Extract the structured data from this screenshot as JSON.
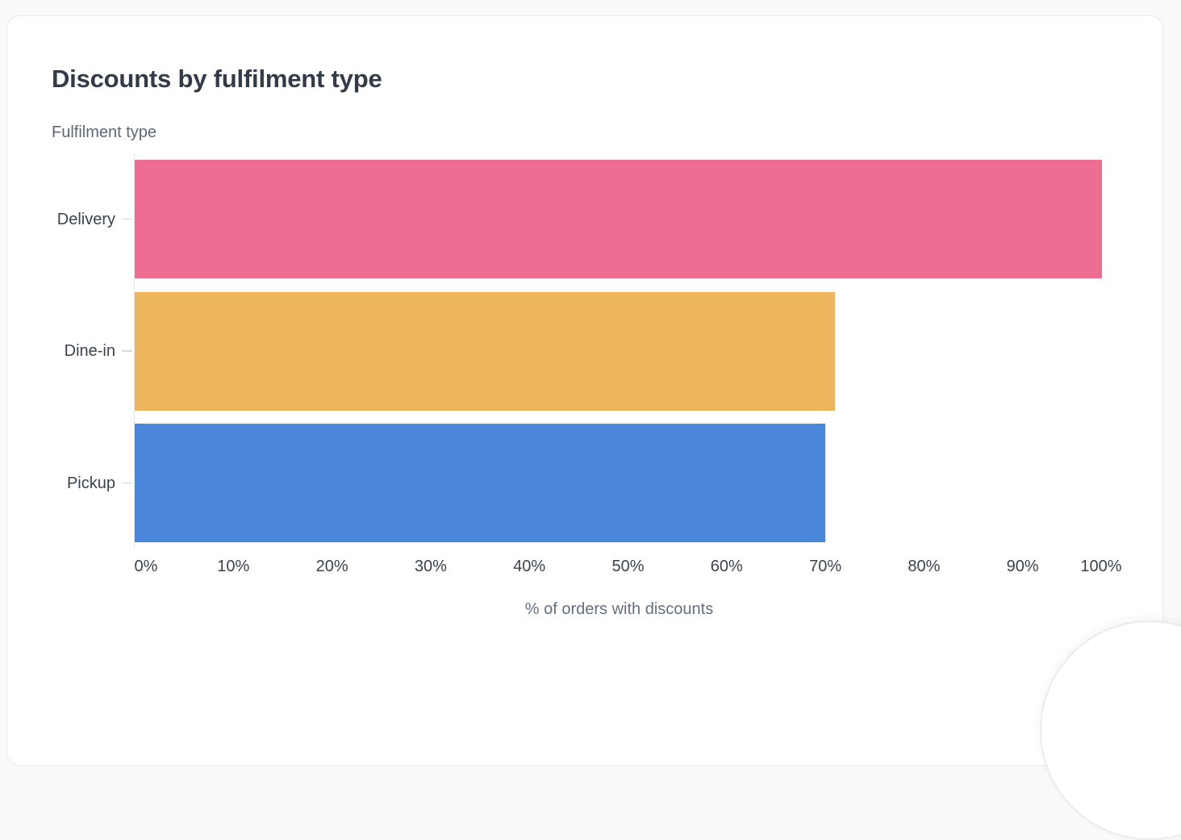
{
  "card": {
    "title": "Discounts by fulfilment type"
  },
  "chart_data": {
    "type": "bar",
    "orientation": "horizontal",
    "title": "Discounts by fulfilment type",
    "ylabel": "Fulfilment type",
    "xlabel": "% of orders with discounts",
    "categories": [
      "Delivery",
      "Dine-in",
      "Pickup"
    ],
    "values": [
      98,
      71,
      70
    ],
    "bar_colors": [
      "#ed6d93",
      "#ecb55e",
      "#4a87da"
    ],
    "xlim": [
      0,
      100
    ],
    "x_tick_labels": [
      "0%",
      "10%",
      "20%",
      "30%",
      "40%",
      "50%",
      "60%",
      "70%",
      "80%",
      "90%",
      "100%"
    ],
    "grid": false,
    "legend": false
  },
  "colors": {
    "title_text": "#333a48",
    "axis_title_text": "#5d6779",
    "tick_text": "#3a4250",
    "axis_line": "#e4e4eb",
    "card_border": "#e9e9f1",
    "page_bg": "#fafafb"
  },
  "widgets": {
    "fab_label": ""
  }
}
